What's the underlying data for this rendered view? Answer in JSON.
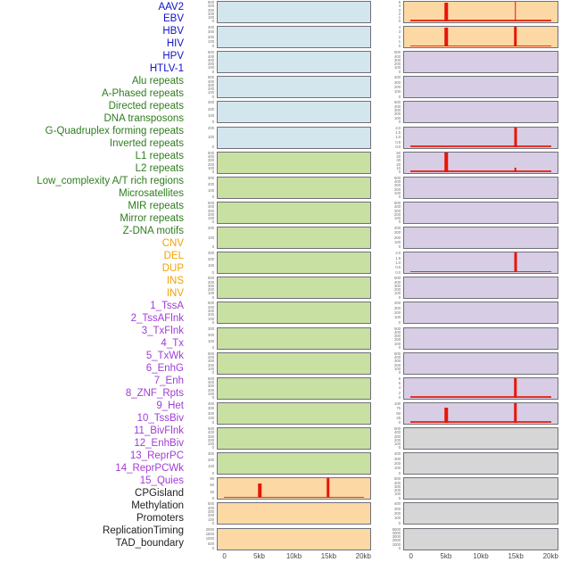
{
  "palette": {
    "label_colors": {
      "virus": "#1111cc",
      "repeat": "#2e7d1e",
      "sv": "#f0a30a",
      "chromhmm": "#a03cd6",
      "regulation": "#222222"
    },
    "panel_fills": {
      "virus": "#d3e5ed",
      "repeat": "#c8e0a2",
      "sv": "#fcd8a4",
      "chromhmm": "#d7cde4",
      "regulation": "#d6d6d6"
    },
    "panel_border": "#70707a",
    "spike_red": "#e81505",
    "tick_text": "#7a7a7a",
    "axis_text": "#4a4a4a"
  },
  "chart_data": {
    "type": "bar",
    "title": "",
    "description": "Two-column faceted track plot of 44 genomic features over a 0-20kb window; red bars mark feature signal peaks at the 5kb and 15kb positions.",
    "x_ticks": [
      "0",
      "5kb",
      "10kb",
      "15kb",
      "20kb"
    ],
    "x_tick_kb": [
      0,
      5,
      10,
      15,
      20
    ],
    "x_range_kb": [
      0,
      20
    ],
    "hotspot_positions_kb": [
      5,
      15
    ],
    "columns": [
      {
        "side": "left",
        "tracks": [
          {
            "label": "AAV2",
            "group": "virus",
            "yticks": [
              "500",
              "400",
              "300",
              "200",
              "100",
              "0"
            ],
            "spikes": [],
            "baseline": false
          },
          {
            "label": "EBV",
            "group": "virus",
            "yticks": [
              "400",
              "300",
              "200",
              "100",
              "0"
            ],
            "spikes": [],
            "baseline": false
          },
          {
            "label": "HBV",
            "group": "virus",
            "yticks": [
              "500",
              "400",
              "300",
              "200",
              "100",
              "0"
            ],
            "spikes": [],
            "baseline": false
          },
          {
            "label": "HIV",
            "group": "virus",
            "yticks": [
              "500",
              "400",
              "300",
              "200",
              "100",
              "0"
            ],
            "spikes": [],
            "baseline": false
          },
          {
            "label": "HPV",
            "group": "virus",
            "yticks": [
              "300",
              "200",
              "100",
              "0"
            ],
            "spikes": [],
            "baseline": false
          },
          {
            "label": "HTLV-1",
            "group": "virus",
            "yticks": [
              "200",
              "100",
              "0"
            ],
            "spikes": [],
            "baseline": false
          },
          {
            "label": "Alu repeats",
            "group": "repeat",
            "yticks": [
              "500",
              "400",
              "300",
              "200",
              "100",
              "0"
            ],
            "spikes": [],
            "baseline": false
          },
          {
            "label": "A-Phased repeats",
            "group": "repeat",
            "yticks": [
              "300",
              "200",
              "100",
              "0"
            ],
            "spikes": [],
            "baseline": false
          },
          {
            "label": "Directed repeats",
            "group": "repeat",
            "yticks": [
              "500",
              "400",
              "300",
              "200",
              "100",
              "0"
            ],
            "spikes": [],
            "baseline": false
          },
          {
            "label": "DNA transposons",
            "group": "repeat",
            "yticks": [
              "200",
              "100",
              "0"
            ],
            "spikes": [],
            "baseline": false
          },
          {
            "label": "G-Quadruplex forming repeats",
            "group": "repeat",
            "yticks": [
              "300",
              "200",
              "100",
              "0"
            ],
            "spikes": [],
            "baseline": false
          },
          {
            "label": "Inverted repeats",
            "group": "repeat",
            "yticks": [
              "500",
              "400",
              "300",
              "200",
              "100",
              "0"
            ],
            "spikes": [],
            "baseline": false
          },
          {
            "label": "L1 repeats",
            "group": "repeat",
            "yticks": [
              "500",
              "400",
              "300",
              "200",
              "100",
              "0"
            ],
            "spikes": [],
            "baseline": false
          },
          {
            "label": "L2 repeats",
            "group": "repeat",
            "yticks": [
              "300",
              "200",
              "100",
              "0"
            ],
            "spikes": [],
            "baseline": false
          },
          {
            "label": "Low_complexity A/T rich regions",
            "group": "repeat",
            "yticks": [
              "500",
              "400",
              "300",
              "200",
              "100",
              "0"
            ],
            "spikes": [],
            "baseline": false
          },
          {
            "label": "Microsatellites",
            "group": "repeat",
            "yticks": [
              "500",
              "400",
              "300",
              "200",
              "100",
              "0"
            ],
            "spikes": [],
            "baseline": false
          },
          {
            "label": "MIR repeats",
            "group": "repeat",
            "yticks": [
              "400",
              "300",
              "200",
              "100",
              "0"
            ],
            "spikes": [],
            "baseline": false
          },
          {
            "label": "Mirror repeats",
            "group": "repeat",
            "yticks": [
              "500",
              "400",
              "300",
              "200",
              "100",
              "0"
            ],
            "spikes": [],
            "baseline": false
          },
          {
            "label": "Z-DNA motifs",
            "group": "repeat",
            "yticks": [
              "300",
              "200",
              "100",
              "0"
            ],
            "spikes": [],
            "baseline": false
          },
          {
            "label": "CNV",
            "group": "sv",
            "yticks": [
              "90",
              "60",
              "30",
              "0"
            ],
            "spikes": [
              {
                "kb": 5,
                "frac": 0.7,
                "w": 3.5
              },
              {
                "kb": 15,
                "frac": 1.0,
                "w": 3.5
              }
            ],
            "baseline": true
          },
          {
            "label": "DEL",
            "group": "sv",
            "yticks": [
              "500",
              "400",
              "300",
              "200",
              "100",
              "0"
            ],
            "spikes": [],
            "baseline": false
          },
          {
            "label": "DUP",
            "group": "sv",
            "yticks": [
              "2000",
              "1500",
              "1000",
              "500",
              "0"
            ],
            "spikes": [],
            "baseline": false
          }
        ]
      },
      {
        "side": "right",
        "tracks": [
          {
            "label": "INS",
            "group": "sv",
            "yticks": [
              "5",
              "4",
              "3",
              "2",
              "1",
              "0"
            ],
            "spikes": [
              {
                "kb": 5,
                "frac": 0.9,
                "w": 3.5
              },
              {
                "kb": 15,
                "frac": 1.0,
                "w": 1.5
              }
            ],
            "baseline": true
          },
          {
            "label": "INV",
            "group": "sv",
            "yticks": [
              "4",
              "3",
              "2",
              "1",
              "0"
            ],
            "spikes": [
              {
                "kb": 5,
                "frac": 0.9,
                "w": 3.5
              },
              {
                "kb": 15,
                "frac": 1.0,
                "w": 3.5
              }
            ],
            "baseline": true
          },
          {
            "label": "1_TssA",
            "group": "chromhmm",
            "yticks": [
              "500",
              "400",
              "300",
              "200",
              "100",
              "0"
            ],
            "spikes": [],
            "baseline": false
          },
          {
            "label": "2_TssAFlnk",
            "group": "chromhmm",
            "yticks": [
              "400",
              "300",
              "200",
              "100",
              "0"
            ],
            "spikes": [],
            "baseline": false
          },
          {
            "label": "3_TxFlnk",
            "group": "chromhmm",
            "yticks": [
              "500",
              "400",
              "300",
              "200",
              "100",
              "0"
            ],
            "spikes": [],
            "baseline": false
          },
          {
            "label": "4_Tx",
            "group": "chromhmm",
            "yticks": [
              "2.0",
              "1.5",
              "1.0",
              "0.5",
              "0.0"
            ],
            "spikes": [
              {
                "kb": 15,
                "frac": 1.0,
                "w": 3.0
              }
            ],
            "baseline": true
          },
          {
            "label": "5_TxWk",
            "group": "chromhmm",
            "yticks": [
              "50",
              "40",
              "30",
              "20",
              "10",
              "0"
            ],
            "spikes": [
              {
                "kb": 5,
                "frac": 1.0,
                "w": 3.5
              },
              {
                "kb": 15,
                "frac": 0.22,
                "w": 2.5
              }
            ],
            "baseline": true
          },
          {
            "label": "6_EnhG",
            "group": "chromhmm",
            "yticks": [
              "500",
              "400",
              "300",
              "200",
              "100",
              "0"
            ],
            "spikes": [],
            "baseline": false
          },
          {
            "label": "7_Enh",
            "group": "chromhmm",
            "yticks": [
              "500",
              "400",
              "300",
              "200",
              "100",
              "0"
            ],
            "spikes": [],
            "baseline": false
          },
          {
            "label": "8_ZNF_Rpts",
            "group": "chromhmm",
            "yticks": [
              "400",
              "300",
              "200",
              "100",
              "0"
            ],
            "spikes": [],
            "baseline": false
          },
          {
            "label": "9_Het",
            "group": "chromhmm",
            "yticks": [
              "2.0",
              "1.5",
              "1.0",
              "0.5",
              "0.0"
            ],
            "spikes": [
              {
                "kb": 15,
                "frac": 1.0,
                "w": 3.0
              }
            ],
            "baseline": true
          },
          {
            "label": "10_TssBiv",
            "group": "chromhmm",
            "yticks": [
              "500",
              "400",
              "300",
              "200",
              "100",
              "0"
            ],
            "spikes": [],
            "baseline": false
          },
          {
            "label": "11_BivFlnk",
            "group": "chromhmm",
            "yticks": [
              "400",
              "300",
              "200",
              "100",
              "0"
            ],
            "spikes": [],
            "baseline": false
          },
          {
            "label": "12_EnhBiv",
            "group": "chromhmm",
            "yticks": [
              "500",
              "400",
              "300",
              "200",
              "100",
              "0"
            ],
            "spikes": [],
            "baseline": false
          },
          {
            "label": "13_ReprPC",
            "group": "chromhmm",
            "yticks": [
              "500",
              "400",
              "300",
              "200",
              "100",
              "0"
            ],
            "spikes": [],
            "baseline": false
          },
          {
            "label": "14_ReprPCWk",
            "group": "chromhmm",
            "yticks": [
              "8",
              "6",
              "4",
              "2",
              "0"
            ],
            "spikes": [
              {
                "kb": 15,
                "frac": 1.0,
                "w": 3.5
              }
            ],
            "baseline": true
          },
          {
            "label": "15_Quies",
            "group": "chromhmm",
            "yticks": [
              "100",
              "75",
              "50",
              "25",
              "0"
            ],
            "spikes": [
              {
                "kb": 5,
                "frac": 0.72,
                "w": 3.5
              },
              {
                "kb": 15,
                "frac": 1.0,
                "w": 3.5
              }
            ],
            "baseline": true
          },
          {
            "label": "CPGisland",
            "group": "regulation",
            "yticks": [
              "500",
              "400",
              "300",
              "200",
              "100",
              "0"
            ],
            "spikes": [],
            "baseline": false
          },
          {
            "label": "Methylation",
            "group": "regulation",
            "yticks": [
              "400",
              "300",
              "200",
              "100",
              "0"
            ],
            "spikes": [],
            "baseline": false
          },
          {
            "label": "Promoters",
            "group": "regulation",
            "yticks": [
              "500",
              "400",
              "300",
              "200",
              "100",
              "0"
            ],
            "spikes": [],
            "baseline": false
          },
          {
            "label": "ReplicationTiming",
            "group": "regulation",
            "yticks": [
              "400",
              "300",
              "200",
              "100",
              "0"
            ],
            "spikes": [],
            "baseline": false
          },
          {
            "label": "TAD_boundary",
            "group": "regulation",
            "yticks": [
              "5000",
              "4000",
              "3000",
              "2000",
              "1000",
              "0"
            ],
            "spikes": [],
            "baseline": false
          }
        ]
      }
    ]
  }
}
